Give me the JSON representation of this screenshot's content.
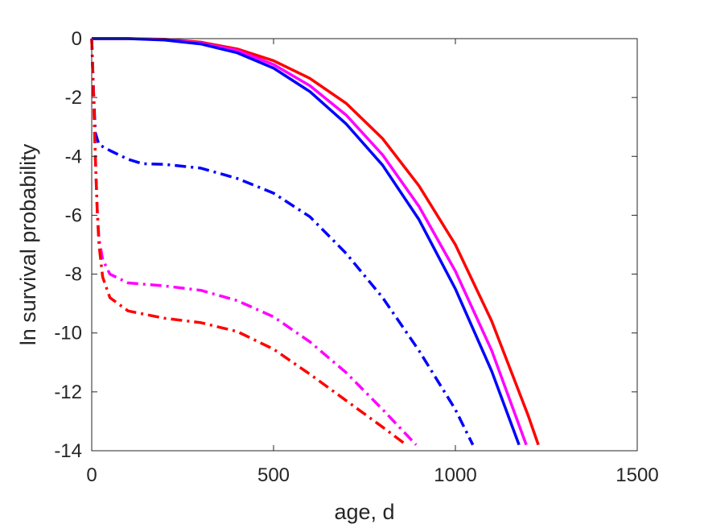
{
  "chart_data": {
    "type": "line",
    "title": "",
    "xlabel": "age, d",
    "ylabel": "ln survival probability",
    "xlim": [
      0,
      1500
    ],
    "ylim": [
      -14,
      0
    ],
    "xticks": [
      0,
      500,
      1000,
      1500
    ],
    "yticks": [
      0,
      -2,
      -4,
      -6,
      -8,
      -10,
      -12,
      -14
    ],
    "grid": false,
    "legend": "none",
    "series": [
      {
        "color": "#ff0000",
        "style": "solid",
        "points": [
          [
            0,
            0
          ],
          [
            100,
            0
          ],
          [
            200,
            -0.02
          ],
          [
            300,
            -0.12
          ],
          [
            400,
            -0.35
          ],
          [
            500,
            -0.75
          ],
          [
            600,
            -1.35
          ],
          [
            700,
            -2.2
          ],
          [
            800,
            -3.4
          ],
          [
            900,
            -5.0
          ],
          [
            1000,
            -7.0
          ],
          [
            1100,
            -9.6
          ],
          [
            1200,
            -12.8
          ],
          [
            1228,
            -13.8
          ]
        ]
      },
      {
        "color": "#ff00ff",
        "style": "solid",
        "points": [
          [
            0,
            0
          ],
          [
            100,
            0
          ],
          [
            200,
            -0.03
          ],
          [
            300,
            -0.15
          ],
          [
            400,
            -0.4
          ],
          [
            500,
            -0.88
          ],
          [
            600,
            -1.6
          ],
          [
            700,
            -2.6
          ],
          [
            800,
            -3.95
          ],
          [
            900,
            -5.7
          ],
          [
            1000,
            -7.9
          ],
          [
            1100,
            -10.6
          ],
          [
            1195,
            -13.8
          ]
        ]
      },
      {
        "color": "#0000ff",
        "style": "solid",
        "points": [
          [
            0,
            0
          ],
          [
            100,
            0
          ],
          [
            200,
            -0.05
          ],
          [
            300,
            -0.18
          ],
          [
            400,
            -0.48
          ],
          [
            500,
            -1.0
          ],
          [
            600,
            -1.8
          ],
          [
            700,
            -2.9
          ],
          [
            800,
            -4.3
          ],
          [
            900,
            -6.15
          ],
          [
            1000,
            -8.5
          ],
          [
            1100,
            -11.3
          ],
          [
            1175,
            -13.8
          ]
        ]
      },
      {
        "color": "#0000ff",
        "style": "dashdot",
        "points": [
          [
            0,
            0
          ],
          [
            4,
            -1.5
          ],
          [
            10,
            -3.2
          ],
          [
            20,
            -3.6
          ],
          [
            50,
            -3.8
          ],
          [
            100,
            -4.1
          ],
          [
            140,
            -4.25
          ],
          [
            200,
            -4.27
          ],
          [
            300,
            -4.4
          ],
          [
            400,
            -4.75
          ],
          [
            500,
            -5.25
          ],
          [
            600,
            -6.05
          ],
          [
            700,
            -7.3
          ],
          [
            800,
            -8.8
          ],
          [
            900,
            -10.6
          ],
          [
            1000,
            -12.6
          ],
          [
            1048,
            -13.8
          ]
        ]
      },
      {
        "color": "#ff00ff",
        "style": "dashdot",
        "points": [
          [
            0,
            0
          ],
          [
            4,
            -1.5
          ],
          [
            10,
            -4.0
          ],
          [
            15,
            -5.8
          ],
          [
            20,
            -6.8
          ],
          [
            30,
            -7.5
          ],
          [
            50,
            -8.0
          ],
          [
            100,
            -8.3
          ],
          [
            200,
            -8.4
          ],
          [
            300,
            -8.55
          ],
          [
            400,
            -8.9
          ],
          [
            500,
            -9.45
          ],
          [
            600,
            -10.3
          ],
          [
            700,
            -11.35
          ],
          [
            800,
            -12.6
          ],
          [
            892,
            -13.8
          ]
        ]
      },
      {
        "color": "#ff0000",
        "style": "dashdot",
        "points": [
          [
            0,
            0
          ],
          [
            4,
            -1.5
          ],
          [
            10,
            -4.0
          ],
          [
            15,
            -5.8
          ],
          [
            20,
            -7.0
          ],
          [
            30,
            -8.1
          ],
          [
            50,
            -8.8
          ],
          [
            100,
            -9.25
          ],
          [
            200,
            -9.5
          ],
          [
            300,
            -9.65
          ],
          [
            400,
            -9.95
          ],
          [
            500,
            -10.55
          ],
          [
            600,
            -11.4
          ],
          [
            700,
            -12.3
          ],
          [
            800,
            -13.2
          ],
          [
            865,
            -13.8
          ]
        ]
      }
    ]
  }
}
